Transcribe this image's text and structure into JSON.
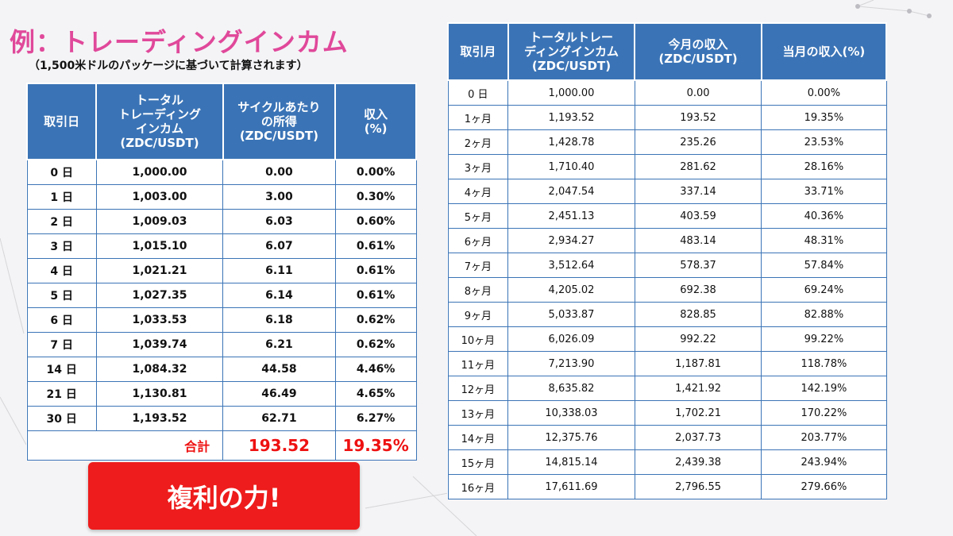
{
  "header": {
    "title": "例：トレーディングインカム",
    "subtitle": "（1,500米ドルのパッケージに基づいて計算されます）"
  },
  "left_table": {
    "headers": [
      "取引日",
      "トータル\nトレーディング\nインカム\n(ZDC/USDT)",
      "サイクルあたり\nの所得\n(ZDC/USDT)",
      "収入\n(%)"
    ],
    "rows": [
      [
        "0 日",
        "1,000.00",
        "0.00",
        "0.00%"
      ],
      [
        "1 日",
        "1,003.00",
        "3.00",
        "0.30%"
      ],
      [
        "2 日",
        "1,009.03",
        "6.03",
        "0.60%"
      ],
      [
        "3 日",
        "1,015.10",
        "6.07",
        "0.61%"
      ],
      [
        "4 日",
        "1,021.21",
        "6.11",
        "0.61%"
      ],
      [
        "5 日",
        "1,027.35",
        "6.14",
        "0.61%"
      ],
      [
        "6 日",
        "1,033.53",
        "6.18",
        "0.62%"
      ],
      [
        "7 日",
        "1,039.74",
        "6.21",
        "0.62%"
      ],
      [
        "14 日",
        "1,084.32",
        "44.58",
        "4.46%"
      ],
      [
        "21 日",
        "1,130.81",
        "46.49",
        "4.65%"
      ],
      [
        "30 日",
        "1,193.52",
        "62.71",
        "6.27%"
      ]
    ],
    "total": {
      "label": "合計",
      "income": "193.52",
      "percent": "19.35%"
    }
  },
  "right_table": {
    "headers": [
      "取引月",
      "トータルトレー\nディングインカム\n(ZDC/USDT)",
      "今月の収入\n(ZDC/USDT)",
      "当月の収入(%)"
    ],
    "rows": [
      [
        "0 日",
        "1,000.00",
        "0.00",
        "0.00%"
      ],
      [
        "1ヶ月",
        "1,193.52",
        "193.52",
        "19.35%"
      ],
      [
        "2ヶ月",
        "1,428.78",
        "235.26",
        "23.53%"
      ],
      [
        "3ヶ月",
        "1,710.40",
        "281.62",
        "28.16%"
      ],
      [
        "4ヶ月",
        "2,047.54",
        "337.14",
        "33.71%"
      ],
      [
        "5ヶ月",
        "2,451.13",
        "403.59",
        "40.36%"
      ],
      [
        "6ヶ月",
        "2,934.27",
        "483.14",
        "48.31%"
      ],
      [
        "7ヶ月",
        "3,512.64",
        "578.37",
        "57.84%"
      ],
      [
        "8ヶ月",
        "4,205.02",
        "692.38",
        "69.24%"
      ],
      [
        "9ヶ月",
        "5,033.87",
        "828.85",
        "82.88%"
      ],
      [
        "10ヶ月",
        "6,026.09",
        "992.22",
        "99.22%"
      ],
      [
        "11ヶ月",
        "7,213.90",
        "1,187.81",
        "118.78%"
      ],
      [
        "12ヶ月",
        "8,635.82",
        "1,421.92",
        "142.19%"
      ],
      [
        "13ヶ月",
        "10,338.03",
        "1,702.21",
        "170.22%"
      ],
      [
        "14ヶ月",
        "12,375.76",
        "2,037.73",
        "203.77%"
      ],
      [
        "15ヶ月",
        "14,815.14",
        "2,439.38",
        "243.94%"
      ],
      [
        "16ヶ月",
        "17,611.69",
        "2,796.55",
        "279.66%"
      ]
    ]
  },
  "cta": {
    "label": "複利の力!"
  },
  "colors": {
    "title": "#e0489a",
    "header_bg": "#3b74b6",
    "accent_red": "#ee1c1c"
  }
}
